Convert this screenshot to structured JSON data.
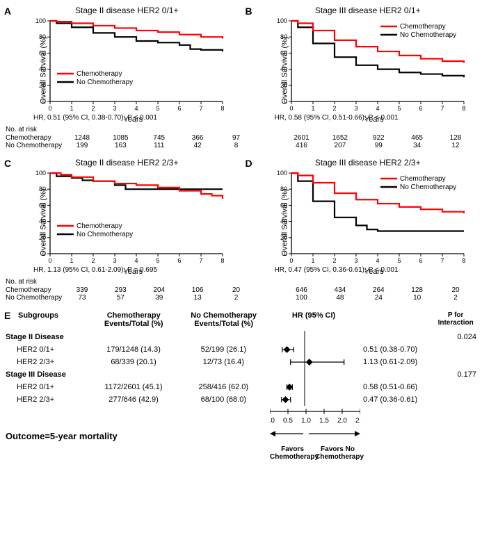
{
  "colors": {
    "chemo": "#ff0000",
    "nochemo": "#000000",
    "axis": "#000000",
    "background": "#ffffff"
  },
  "axis": {
    "ylabel": "Overall Survival (%)",
    "xlabel": "Years",
    "ylim": [
      0,
      100
    ],
    "ytick_step": 20,
    "xlim": [
      0,
      8
    ],
    "xtick_step": 1,
    "label_fontsize": 11,
    "tick_fontsize": 9
  },
  "legend": {
    "chemo": "Chemotherapy",
    "nochemo": "No Chemotherapy"
  },
  "panels": {
    "A": {
      "letter": "A",
      "title": "Stage II disease HER2 0/1+",
      "hr_text": "HR, 0.51 (95% CI, 0.38-0.70); P < 0.001",
      "legend_pos": "inside-left",
      "chemo": [
        [
          0,
          100
        ],
        [
          0.3,
          99
        ],
        [
          1,
          97
        ],
        [
          2,
          94
        ],
        [
          3,
          91
        ],
        [
          4,
          88
        ],
        [
          5,
          86
        ],
        [
          6,
          83
        ],
        [
          7,
          80
        ],
        [
          8,
          78
        ]
      ],
      "nochemo": [
        [
          0,
          100
        ],
        [
          0.3,
          97
        ],
        [
          1,
          92
        ],
        [
          2,
          85
        ],
        [
          3,
          80
        ],
        [
          4,
          75
        ],
        [
          5,
          73
        ],
        [
          6,
          70
        ],
        [
          6.5,
          65
        ],
        [
          7,
          64
        ],
        [
          8,
          62
        ]
      ],
      "risk_years": [
        0,
        2,
        4,
        6,
        8
      ],
      "risk_chemo": [
        1248,
        1085,
        745,
        366,
        97
      ],
      "risk_nochemo": [
        199,
        163,
        111,
        42,
        8
      ]
    },
    "B": {
      "letter": "B",
      "title": "Stage III disease HER2 0/1+",
      "hr_text": "HR, 0.58 (95% CI, 0.51-0.66); P < 0.001",
      "legend_pos": "inside-right",
      "chemo": [
        [
          0,
          100
        ],
        [
          0.3,
          97
        ],
        [
          1,
          88
        ],
        [
          2,
          76
        ],
        [
          3,
          68
        ],
        [
          4,
          62
        ],
        [
          5,
          57
        ],
        [
          6,
          53
        ],
        [
          7,
          50
        ],
        [
          8,
          48
        ]
      ],
      "nochemo": [
        [
          0,
          100
        ],
        [
          0.3,
          92
        ],
        [
          1,
          72
        ],
        [
          2,
          55
        ],
        [
          3,
          45
        ],
        [
          4,
          40
        ],
        [
          5,
          36
        ],
        [
          6,
          34
        ],
        [
          7,
          32
        ],
        [
          8,
          30
        ]
      ],
      "risk_years": [
        0,
        2,
        4,
        6,
        8
      ],
      "risk_chemo": [
        2601,
        1652,
        922,
        465,
        128
      ],
      "risk_nochemo": [
        416,
        207,
        99,
        34,
        12
      ]
    },
    "C": {
      "letter": "C",
      "title": "Stage II disease HER2 2/3+",
      "hr_text": "HR, 1.13 (95% CI, 0.61-2.09); P = 0.695",
      "legend_pos": "inside-left",
      "chemo": [
        [
          0,
          100
        ],
        [
          0.5,
          98
        ],
        [
          1,
          95
        ],
        [
          2,
          90
        ],
        [
          3,
          87
        ],
        [
          4,
          85
        ],
        [
          5,
          82
        ],
        [
          6,
          78
        ],
        [
          7,
          74
        ],
        [
          7.5,
          72
        ],
        [
          8,
          68
        ]
      ],
      "nochemo": [
        [
          0,
          100
        ],
        [
          0.3,
          96
        ],
        [
          1,
          94
        ],
        [
          1.5,
          91
        ],
        [
          2,
          90
        ],
        [
          3,
          85
        ],
        [
          3.5,
          80
        ],
        [
          4,
          80
        ],
        [
          5,
          80
        ],
        [
          6,
          80
        ],
        [
          7,
          80
        ],
        [
          8,
          80
        ]
      ],
      "risk_years": [
        0,
        2,
        4,
        6,
        8
      ],
      "risk_chemo": [
        339,
        293,
        204,
        106,
        20
      ],
      "risk_nochemo": [
        73,
        57,
        39,
        13,
        2
      ]
    },
    "D": {
      "letter": "D",
      "title": "Stage III disease HER2 2/3+",
      "hr_text": "HR, 0.47 (95% CI, 0.36-0.61); P < 0.001",
      "legend_pos": "inside-right",
      "chemo": [
        [
          0,
          100
        ],
        [
          0.3,
          97
        ],
        [
          1,
          88
        ],
        [
          2,
          75
        ],
        [
          3,
          67
        ],
        [
          4,
          62
        ],
        [
          5,
          58
        ],
        [
          6,
          55
        ],
        [
          7,
          52
        ],
        [
          8,
          50
        ]
      ],
      "nochemo": [
        [
          0,
          100
        ],
        [
          0.3,
          90
        ],
        [
          1,
          65
        ],
        [
          2,
          45
        ],
        [
          3,
          35
        ],
        [
          3.5,
          30
        ],
        [
          4,
          28
        ],
        [
          5,
          28
        ],
        [
          6,
          28
        ],
        [
          7,
          28
        ],
        [
          8,
          28
        ]
      ],
      "risk_years": [
        0,
        2,
        4,
        6,
        8
      ],
      "risk_chemo": [
        646,
        434,
        264,
        128,
        20
      ],
      "risk_nochemo": [
        100,
        48,
        24,
        10,
        2
      ]
    }
  },
  "risk_table_title": "No. at risk",
  "forest": {
    "letter": "E",
    "headers": {
      "subgroups": "Subgroups",
      "chemo": "Chemotherapy\nEvents/Total (%)",
      "nochemo": "No Chemotherapy\nEvents/Total (%)",
      "hr": "HR (95% CI)",
      "pint": "P for\nInteraction"
    },
    "axis": {
      "min": 0.0,
      "max": 2.5,
      "ticks": [
        0.0,
        0.5,
        1.0,
        1.5,
        2.0,
        2.5
      ],
      "ref": 1.0
    },
    "groups": [
      {
        "title": "Stage II Disease",
        "pint": "0.024",
        "rows": [
          {
            "label": "HER2 0/1+",
            "chemo": "179/1248 (14.3)",
            "nochemo": "52/199 (26.1)",
            "hr": 0.51,
            "lo": 0.38,
            "hi": 0.7,
            "hr_text": "0.51 (0.38-0.70)"
          },
          {
            "label": "HER2 2/3+",
            "chemo": "68/339 (20.1)",
            "nochemo": "12/73 (16.4)",
            "hr": 1.13,
            "lo": 0.61,
            "hi": 2.09,
            "hr_text": "1.13 (0.61-2.09)"
          }
        ]
      },
      {
        "title": "Stage III Disease",
        "pint": "0.177",
        "rows": [
          {
            "label": "HER2 0/1+",
            "chemo": "1172/2601 (45.1)",
            "nochemo": "258/416 (62.0)",
            "hr": 0.58,
            "lo": 0.51,
            "hi": 0.66,
            "hr_text": "0.58 (0.51-0.66)"
          },
          {
            "label": "HER2 2/3+",
            "chemo": "277/646 (42.9)",
            "nochemo": "68/100 (68.0)",
            "hr": 0.47,
            "lo": 0.36,
            "hi": 0.61,
            "hr_text": "0.47 (0.36-0.61)"
          }
        ]
      }
    ],
    "outcome_label": "Outcome=5-year mortality",
    "favors_left": "Favors Chemotherapy",
    "favors_right": "Favors  No Chemotherapy"
  }
}
